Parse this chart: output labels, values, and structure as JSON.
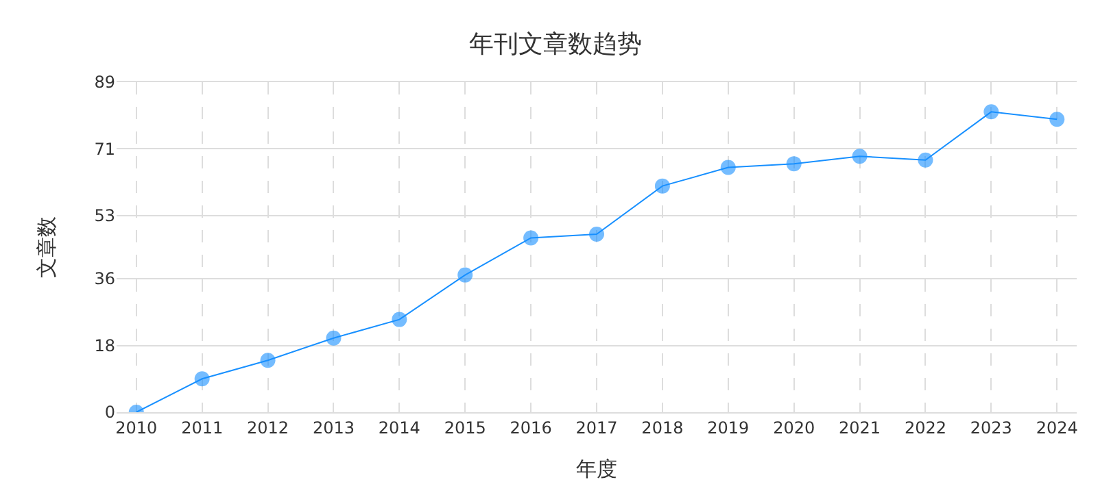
{
  "chart_data": {
    "type": "line",
    "title": "年刊文章数趋势",
    "xlabel": "年度",
    "ylabel": "文章数",
    "categories": [
      "2010",
      "2011",
      "2012",
      "2013",
      "2014",
      "2015",
      "2016",
      "2017",
      "2018",
      "2019",
      "2020",
      "2021",
      "2022",
      "2023",
      "2024"
    ],
    "series": [
      {
        "color": "#1890ff",
        "values": [
          0,
          9,
          14,
          20,
          25,
          37,
          47,
          48,
          61,
          66,
          67,
          69,
          68,
          81,
          79
        ]
      }
    ],
    "ylim": [
      0,
      89
    ],
    "yticks": [
      0,
      18,
      36,
      53,
      71,
      89
    ],
    "grid": true,
    "marker": "circle",
    "line_style": "solid"
  }
}
